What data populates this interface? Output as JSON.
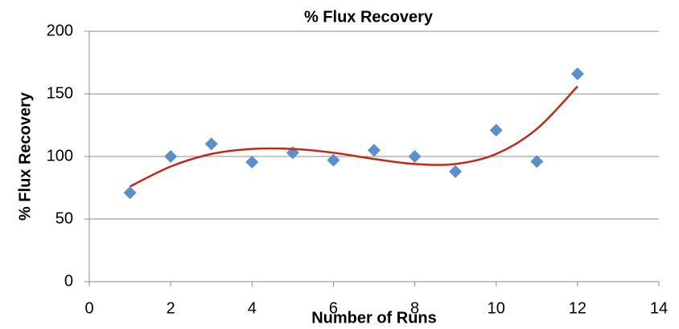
{
  "chart_data": {
    "type": "scatter",
    "title": "% Flux Recovery",
    "x_label": "Number of Runs",
    "y_label": "% Flux Recovery",
    "x": [
      1,
      2,
      3,
      4,
      5,
      6,
      7,
      8,
      9,
      10,
      11,
      12
    ],
    "values": [
      71,
      100,
      110,
      95.5,
      103,
      97,
      105,
      100,
      88,
      121,
      96,
      166
    ],
    "color": "#5b8fcb",
    "trendline": {
      "color": "#c0281a",
      "x": [
        1,
        2,
        3,
        4,
        5,
        6,
        7,
        8,
        9,
        10,
        11,
        12
      ],
      "values": [
        76,
        92,
        102,
        106,
        106,
        103,
        98,
        94,
        94,
        102,
        122,
        156
      ]
    },
    "xlim": [
      0,
      14
    ],
    "xticks": [
      0,
      2,
      4,
      6,
      8,
      10,
      12,
      14
    ],
    "ylim": [
      0,
      200
    ],
    "yticks": [
      0,
      50,
      100,
      150,
      200
    ],
    "grid": true
  }
}
